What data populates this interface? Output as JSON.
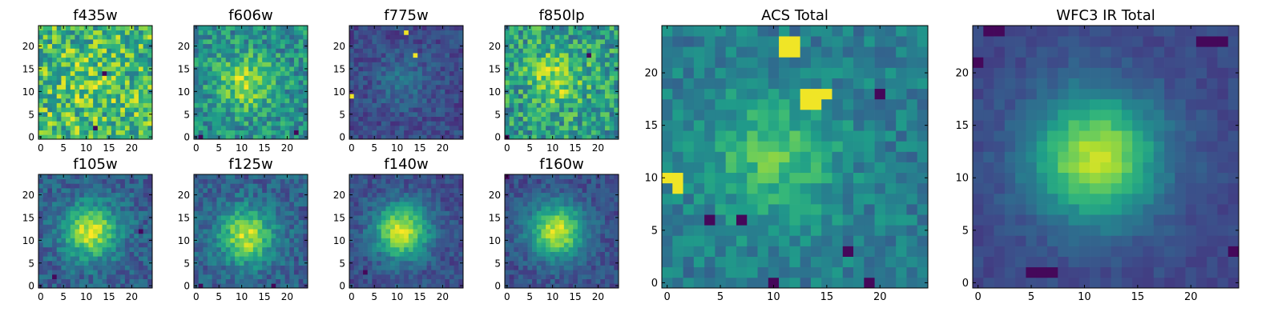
{
  "chart_data": [
    {
      "type": "heatmap",
      "title": "f435w",
      "xticks": [
        0,
        5,
        10,
        15,
        20
      ],
      "yticks": [
        0,
        5,
        10,
        15,
        20
      ],
      "xlim": [
        -0.5,
        24.5
      ],
      "ylim": [
        -0.5,
        24.5
      ],
      "grid_size": 25,
      "colormap": "viridis",
      "center": [
        11,
        12
      ],
      "peak_strength": 0.1,
      "noise": 0.28,
      "baseline": 0.68,
      "seed": 11,
      "hot_pixels": [
        [
          2,
          5
        ],
        [
          9,
          11
        ]
      ],
      "dark_pixels": [
        [
          14,
          14
        ],
        [
          12,
          2
        ]
      ]
    },
    {
      "type": "heatmap",
      "title": "f606w",
      "xticks": [
        0,
        5,
        10,
        15,
        20
      ],
      "yticks": [
        0,
        5,
        10,
        15,
        20
      ],
      "xlim": [
        -0.5,
        24.5
      ],
      "ylim": [
        -0.5,
        24.5
      ],
      "grid_size": 25,
      "colormap": "viridis",
      "center": [
        11,
        12
      ],
      "peak_strength": 0.35,
      "noise": 0.2,
      "baseline": 0.5,
      "seed": 23,
      "hot_pixels": [],
      "dark_pixels": [
        [
          1,
          0
        ],
        [
          22,
          1
        ]
      ]
    },
    {
      "type": "heatmap",
      "title": "f775w",
      "xticks": [
        0,
        5,
        10,
        15,
        20
      ],
      "yticks": [
        0,
        5,
        10,
        15,
        20
      ],
      "xlim": [
        -0.5,
        24.5
      ],
      "ylim": [
        -0.5,
        24.5
      ],
      "grid_size": 25,
      "colormap": "viridis",
      "center": [
        11,
        12
      ],
      "peak_strength": 0.15,
      "noise": 0.1,
      "baseline": 0.22,
      "seed": 37,
      "hot_pixels": [
        [
          12,
          23
        ],
        [
          14,
          18
        ],
        [
          0,
          9
        ]
      ],
      "dark_pixels": []
    },
    {
      "type": "heatmap",
      "title": "f850lp",
      "xticks": [
        0,
        5,
        10,
        15,
        20
      ],
      "yticks": [
        0,
        5,
        10,
        15,
        20
      ],
      "xlim": [
        -0.5,
        24.5
      ],
      "ylim": [
        -0.5,
        24.5
      ],
      "grid_size": 25,
      "colormap": "viridis",
      "center": [
        11,
        13
      ],
      "peak_strength": 0.3,
      "noise": 0.24,
      "baseline": 0.55,
      "seed": 41,
      "hot_pixels": [],
      "dark_pixels": [
        [
          18,
          18
        ],
        [
          0,
          0
        ]
      ]
    },
    {
      "type": "heatmap",
      "title": "f105w",
      "xticks": [
        0,
        5,
        10,
        15,
        20
      ],
      "yticks": [
        0,
        5,
        10,
        15,
        20
      ],
      "xlim": [
        -0.5,
        24.5
      ],
      "ylim": [
        -0.5,
        24.5
      ],
      "grid_size": 25,
      "colormap": "viridis",
      "center": [
        11,
        12
      ],
      "peak_strength": 0.62,
      "noise": 0.13,
      "baseline": 0.3,
      "seed": 53,
      "hot_pixels": [],
      "dark_pixels": [
        [
          22,
          12
        ],
        [
          3,
          2
        ]
      ]
    },
    {
      "type": "heatmap",
      "title": "f125w",
      "xticks": [
        0,
        5,
        10,
        15,
        20
      ],
      "yticks": [
        0,
        5,
        10,
        15,
        20
      ],
      "xlim": [
        -0.5,
        24.5
      ],
      "ylim": [
        -0.5,
        24.5
      ],
      "grid_size": 25,
      "colormap": "viridis",
      "center": [
        11,
        11
      ],
      "peak_strength": 0.6,
      "noise": 0.13,
      "baseline": 0.3,
      "seed": 61,
      "hot_pixels": [],
      "dark_pixels": [
        [
          1,
          0
        ],
        [
          17,
          0
        ]
      ]
    },
    {
      "type": "heatmap",
      "title": "f140w",
      "xticks": [
        0,
        5,
        10,
        15,
        20
      ],
      "yticks": [
        0,
        5,
        10,
        15,
        20
      ],
      "xlim": [
        -0.5,
        24.5
      ],
      "ylim": [
        -0.5,
        24.5
      ],
      "grid_size": 25,
      "colormap": "viridis",
      "center": [
        11,
        12
      ],
      "peak_strength": 0.68,
      "noise": 0.1,
      "baseline": 0.24,
      "seed": 71,
      "hot_pixels": [],
      "dark_pixels": [
        [
          3,
          3
        ]
      ]
    },
    {
      "type": "heatmap",
      "title": "f160w",
      "xticks": [
        0,
        5,
        10,
        15,
        20
      ],
      "yticks": [
        0,
        5,
        10,
        15,
        20
      ],
      "xlim": [
        -0.5,
        24.5
      ],
      "ylim": [
        -0.5,
        24.5
      ],
      "grid_size": 25,
      "colormap": "viridis",
      "center": [
        11,
        12
      ],
      "peak_strength": 0.68,
      "noise": 0.1,
      "baseline": 0.24,
      "seed": 83,
      "hot_pixels": [],
      "dark_pixels": [
        [
          0,
          24
        ]
      ]
    },
    {
      "type": "heatmap",
      "title": "ACS Total",
      "xticks": [
        0,
        5,
        10,
        15,
        20
      ],
      "yticks": [
        0,
        5,
        10,
        15,
        20
      ],
      "xlim": [
        -0.5,
        24.5
      ],
      "ylim": [
        -0.5,
        24.5
      ],
      "grid_size": 25,
      "colormap": "viridis",
      "center": [
        10,
        12
      ],
      "peak_strength": 0.3,
      "noise": 0.12,
      "baseline": 0.42,
      "seed": 97,
      "hot_pixels": [
        [
          11,
          23
        ],
        [
          12,
          23
        ],
        [
          11,
          22
        ],
        [
          12,
          22
        ],
        [
          13,
          18
        ],
        [
          14,
          18
        ],
        [
          15,
          18
        ],
        [
          13,
          17
        ],
        [
          14,
          17
        ],
        [
          0,
          10
        ],
        [
          1,
          10
        ],
        [
          1,
          9
        ]
      ],
      "dark_pixels": [
        [
          4,
          6
        ],
        [
          7,
          6
        ],
        [
          10,
          0
        ],
        [
          19,
          0
        ],
        [
          17,
          3
        ],
        [
          20,
          18
        ]
      ]
    },
    {
      "type": "heatmap",
      "title": "WFC3 IR Total",
      "xticks": [
        0,
        5,
        10,
        15,
        20
      ],
      "yticks": [
        0,
        5,
        10,
        15,
        20
      ],
      "xlim": [
        -0.5,
        24.5
      ],
      "ylim": [
        -0.5,
        24.5
      ],
      "grid_size": 25,
      "colormap": "viridis",
      "center": [
        11,
        12
      ],
      "peak_strength": 0.68,
      "noise": 0.05,
      "baseline": 0.22,
      "seed": 101,
      "hot_pixels": [],
      "dark_pixels": [
        [
          1,
          24
        ],
        [
          2,
          24
        ],
        [
          21,
          23
        ],
        [
          22,
          23
        ],
        [
          23,
          23
        ],
        [
          5,
          1
        ],
        [
          6,
          1
        ],
        [
          7,
          1
        ],
        [
          0,
          21
        ],
        [
          24,
          3
        ]
      ]
    }
  ]
}
